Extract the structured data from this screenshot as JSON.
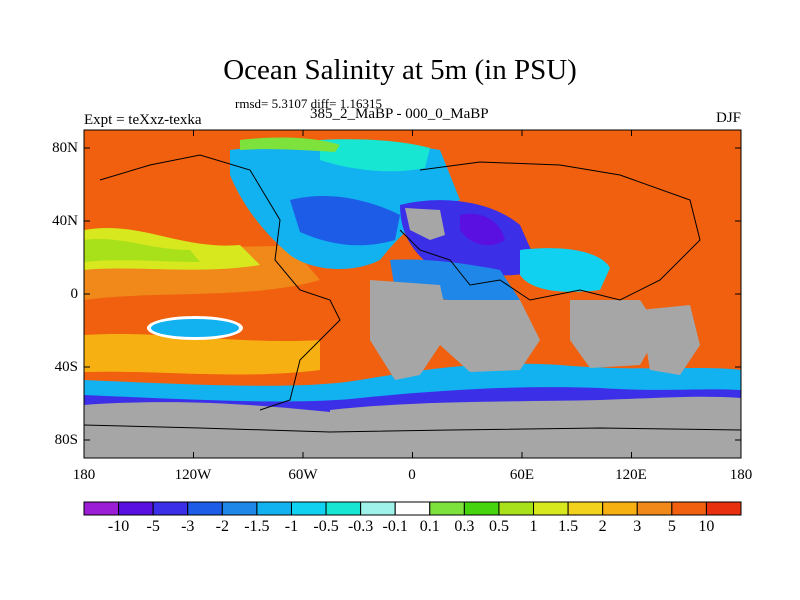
{
  "title": "Ocean Salinity at 5m (in PSU)",
  "stats": "rmsd= 5.3107 diff= 1.16315",
  "left_label": "Expt = teXxz-texka",
  "center_label": "385_2_MaBP - 000_0_MaBP",
  "right_label": "DJF",
  "y_ticks": [
    "80N",
    "40N",
    "0",
    "40S",
    "80S"
  ],
  "x_ticks": [
    "180",
    "120W",
    "60W",
    "0",
    "60E",
    "120E",
    "180"
  ],
  "colorbar": {
    "colors": [
      "#9b1ed6",
      "#5a10e0",
      "#3c2fe8",
      "#1d5ce6",
      "#1e87e8",
      "#12b2f0",
      "#10d2f0",
      "#17e6d2",
      "#9ef2ea",
      "#ffffff",
      "#7ee23c",
      "#46d40e",
      "#a8e01a",
      "#d8e81e",
      "#f2d21c",
      "#f6b012",
      "#f0881a",
      "#f0600e",
      "#e8300e"
    ],
    "labels": [
      "-10",
      "-5",
      "-3",
      "-2",
      "-1.5",
      "-1",
      "-0.5",
      "-0.3",
      "-0.1",
      "0.1",
      "0.3",
      "0.5",
      "1",
      "1.5",
      "2",
      "3",
      "5",
      "10"
    ]
  },
  "land_color": "#a6a6a6"
}
